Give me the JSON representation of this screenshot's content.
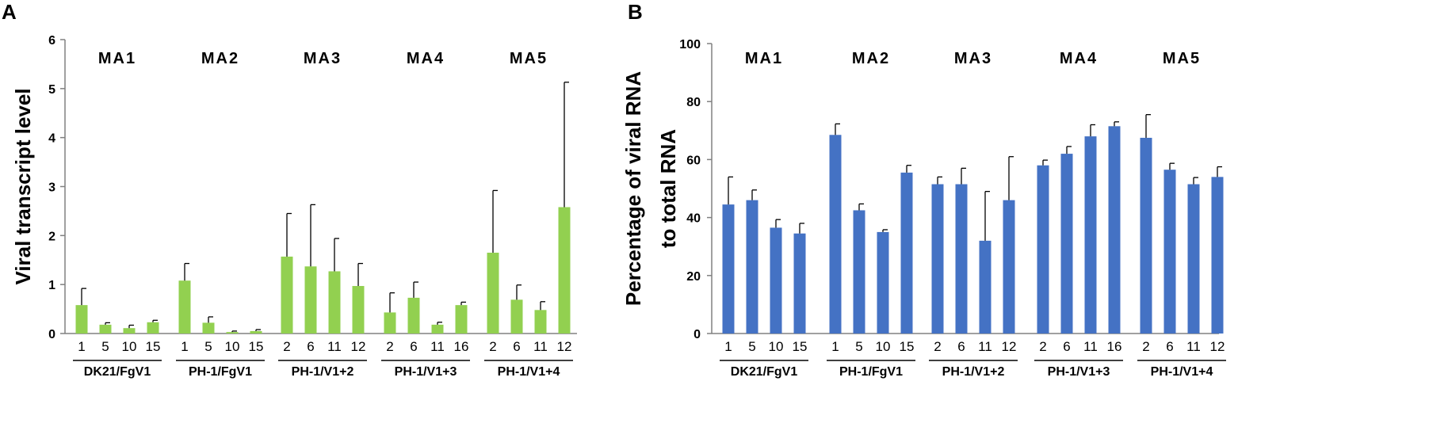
{
  "chart_data": [
    {
      "type": "bar",
      "panel_label": "A",
      "title": "",
      "xlabel": "",
      "ylabel_lines": [
        "Viral transcript level"
      ],
      "ylim": [
        0,
        6
      ],
      "yticks": [
        0,
        1,
        2,
        3,
        4,
        5,
        6
      ],
      "bar_color": "#92d050",
      "groups": [
        {
          "ma_label": "MA1",
          "group_label": "DK21/FgV1",
          "categories": [
            "1",
            "5",
            "10",
            "15"
          ],
          "values": [
            0.58,
            0.18,
            0.11,
            0.23
          ],
          "errors": [
            0.34,
            0.04,
            0.06,
            0.04
          ]
        },
        {
          "ma_label": "MA2",
          "group_label": "PH-1/FgV1",
          "categories": [
            "1",
            "5",
            "10",
            "15"
          ],
          "values": [
            1.08,
            0.22,
            0.03,
            0.05
          ],
          "errors": [
            0.35,
            0.12,
            0.02,
            0.03
          ]
        },
        {
          "ma_label": "MA3",
          "group_label": "PH-1/V1+2",
          "categories": [
            "2",
            "6",
            "11",
            "12"
          ],
          "values": [
            1.57,
            1.37,
            1.27,
            0.97
          ],
          "errors": [
            0.88,
            1.26,
            0.67,
            0.46
          ]
        },
        {
          "ma_label": "MA4",
          "group_label": "PH-1/V1+3",
          "categories": [
            "2",
            "6",
            "11",
            "16"
          ],
          "values": [
            0.43,
            0.73,
            0.18,
            0.58
          ],
          "errors": [
            0.4,
            0.32,
            0.05,
            0.06
          ]
        },
        {
          "ma_label": "MA5",
          "group_label": "PH-1/V1+4",
          "categories": [
            "2",
            "6",
            "11",
            "12"
          ],
          "values": [
            1.65,
            0.69,
            0.48,
            2.58
          ],
          "errors": [
            1.27,
            0.3,
            0.17,
            2.55
          ]
        }
      ]
    },
    {
      "type": "bar",
      "panel_label": "B",
      "title": "",
      "xlabel": "",
      "ylabel_lines": [
        "Percentage of viral RNA",
        "to total RNA"
      ],
      "ylim": [
        0,
        100
      ],
      "yticks": [
        0,
        20,
        40,
        60,
        80,
        100
      ],
      "bar_color": "#4472c4",
      "groups": [
        {
          "ma_label": "MA1",
          "group_label": "DK21/FgV1",
          "categories": [
            "1",
            "5",
            "10",
            "15"
          ],
          "values": [
            44.5,
            46,
            36.5,
            34.5
          ],
          "errors": [
            9.5,
            3.5,
            2.8,
            3.5
          ]
        },
        {
          "ma_label": "MA2",
          "group_label": "PH-1/FgV1",
          "categories": [
            "1",
            "5",
            "10",
            "15"
          ],
          "values": [
            68.5,
            42.5,
            35,
            55.5
          ],
          "errors": [
            3.8,
            2.2,
            0.8,
            2.5
          ]
        },
        {
          "ma_label": "MA3",
          "group_label": "PH-1/V1+2",
          "categories": [
            "2",
            "6",
            "11",
            "12"
          ],
          "values": [
            51.5,
            51.5,
            32,
            46
          ],
          "errors": [
            2.5,
            5.5,
            17,
            15
          ]
        },
        {
          "ma_label": "MA4",
          "group_label": "PH-1/V1+3",
          "categories": [
            "2",
            "6",
            "11",
            "16"
          ],
          "values": [
            58,
            62,
            68,
            71.5
          ],
          "errors": [
            1.8,
            2.5,
            4,
            1.5
          ]
        },
        {
          "ma_label": "MA5",
          "group_label": "PH-1/V1+4",
          "categories": [
            "2",
            "6",
            "11",
            "12"
          ],
          "values": [
            67.5,
            56.5,
            51.5,
            54
          ],
          "errors": [
            8,
            2.2,
            2.3,
            3.5
          ]
        }
      ]
    }
  ]
}
